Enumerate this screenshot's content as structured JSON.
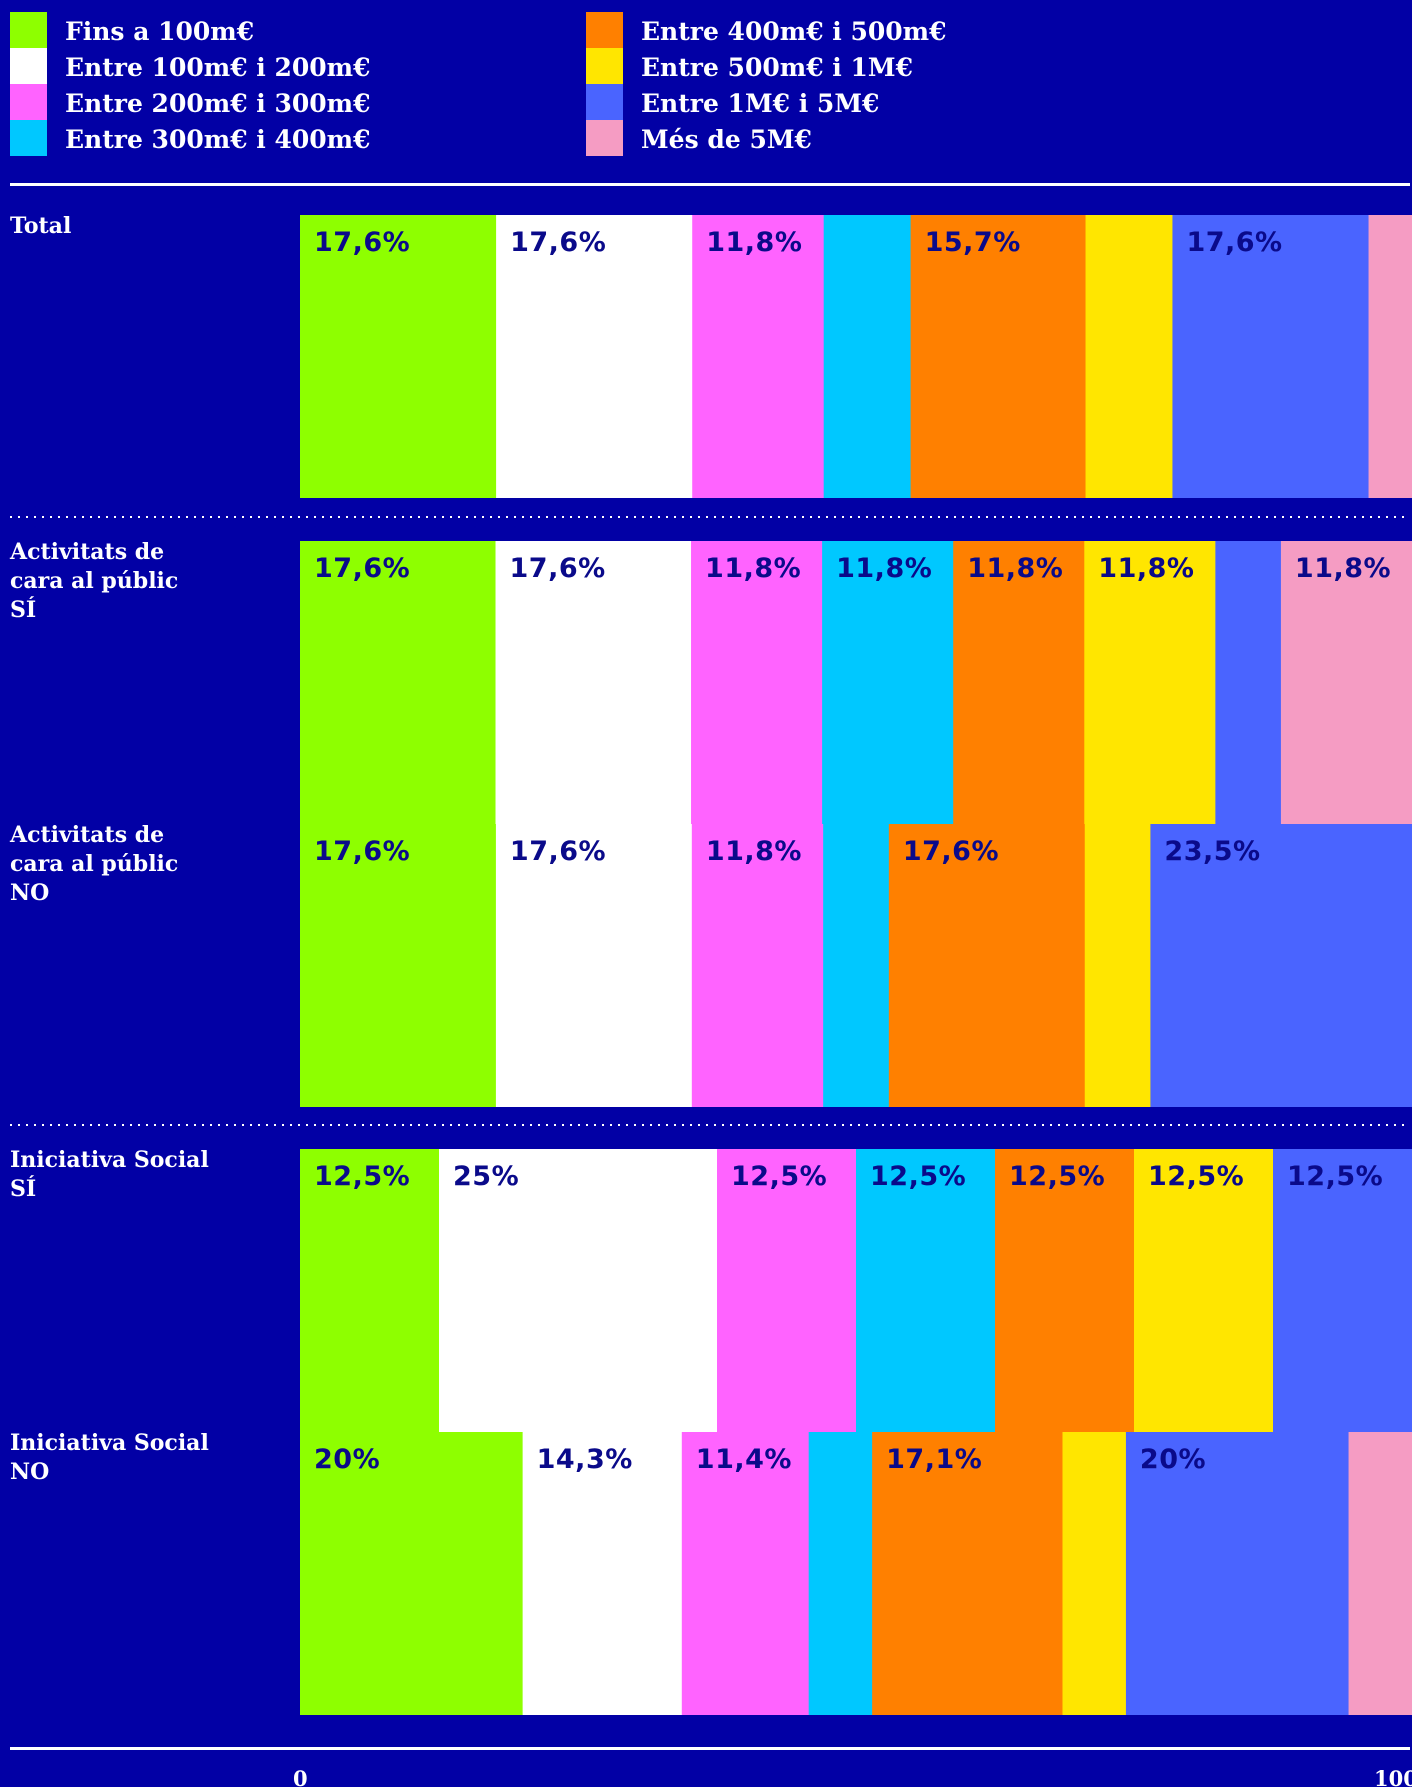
{
  "chart_data": {
    "type": "bar",
    "orientation": "horizontal-stacked-100",
    "legend_placement": "top",
    "grid": false,
    "xlim": [
      0,
      100
    ],
    "x_ticks": [
      "0",
      "100"
    ],
    "categories_legend": [
      {
        "name": "Fins a 100m€",
        "color": "#8eff00"
      },
      {
        "name": "Entre 100m€ i 200m€",
        "color": "#ffffff"
      },
      {
        "name": "Entre 200m€ i 300m€",
        "color": "#ff63ff"
      },
      {
        "name": "Entre 300m€ i 400m€",
        "color": "#00c8ff"
      },
      {
        "name": "Entre 400m€ i 500m€",
        "color": "#ff8000"
      },
      {
        "name": "Entre 500m€ i 1M€",
        "color": "#ffe600"
      },
      {
        "name": "Entre 1M€ i 5M€",
        "color": "#4a64ff"
      },
      {
        "name": "Més de 5M€",
        "color": "#f59cc3"
      }
    ],
    "groups": [
      {
        "rows": [
          {
            "label": [
              "Total"
            ],
            "values": [
              17.6,
              17.6,
              11.8,
              7.8,
              15.7,
              7.8,
              17.6,
              3.9
            ],
            "labels": [
              "17,6%",
              "17,6%",
              "11,8%",
              "",
              "15,7%",
              "",
              "17,6%",
              ""
            ]
          }
        ]
      },
      {
        "rows": [
          {
            "label": [
              "Activitats de",
              "cara al públic",
              "SÍ"
            ],
            "values": [
              17.6,
              17.6,
              11.8,
              11.8,
              11.8,
              11.8,
              5.9,
              11.8
            ],
            "labels": [
              "17,6%",
              "17,6%",
              "11,8%",
              "11,8%",
              "11,8%",
              "11,8%",
              "",
              "11,8%"
            ]
          },
          {
            "label": [
              "Activitats de",
              "cara al públic",
              "NO"
            ],
            "values": [
              17.6,
              17.6,
              11.8,
              5.9,
              17.6,
              5.9,
              23.5,
              0
            ],
            "labels": [
              "17,6%",
              "17,6%",
              "11,8%",
              "",
              "17,6%",
              "",
              "23,5%",
              ""
            ]
          }
        ]
      },
      {
        "rows": [
          {
            "label": [
              "Iniciativa Social",
              "SÍ"
            ],
            "values": [
              12.5,
              25,
              12.5,
              12.5,
              12.5,
              12.5,
              12.5,
              0
            ],
            "labels": [
              "12,5%",
              "25%",
              "12,5%",
              "12,5%",
              "12,5%",
              "12,5%",
              "12,5%",
              ""
            ]
          },
          {
            "label": [
              "Iniciativa Social",
              "NO"
            ],
            "values": [
              20,
              14.3,
              11.4,
              5.7,
              17.1,
              5.7,
              20,
              5.7
            ],
            "labels": [
              "20%",
              "14,3%",
              "11,4%",
              "",
              "17,1%",
              "",
              "20%",
              ""
            ]
          }
        ]
      }
    ]
  }
}
